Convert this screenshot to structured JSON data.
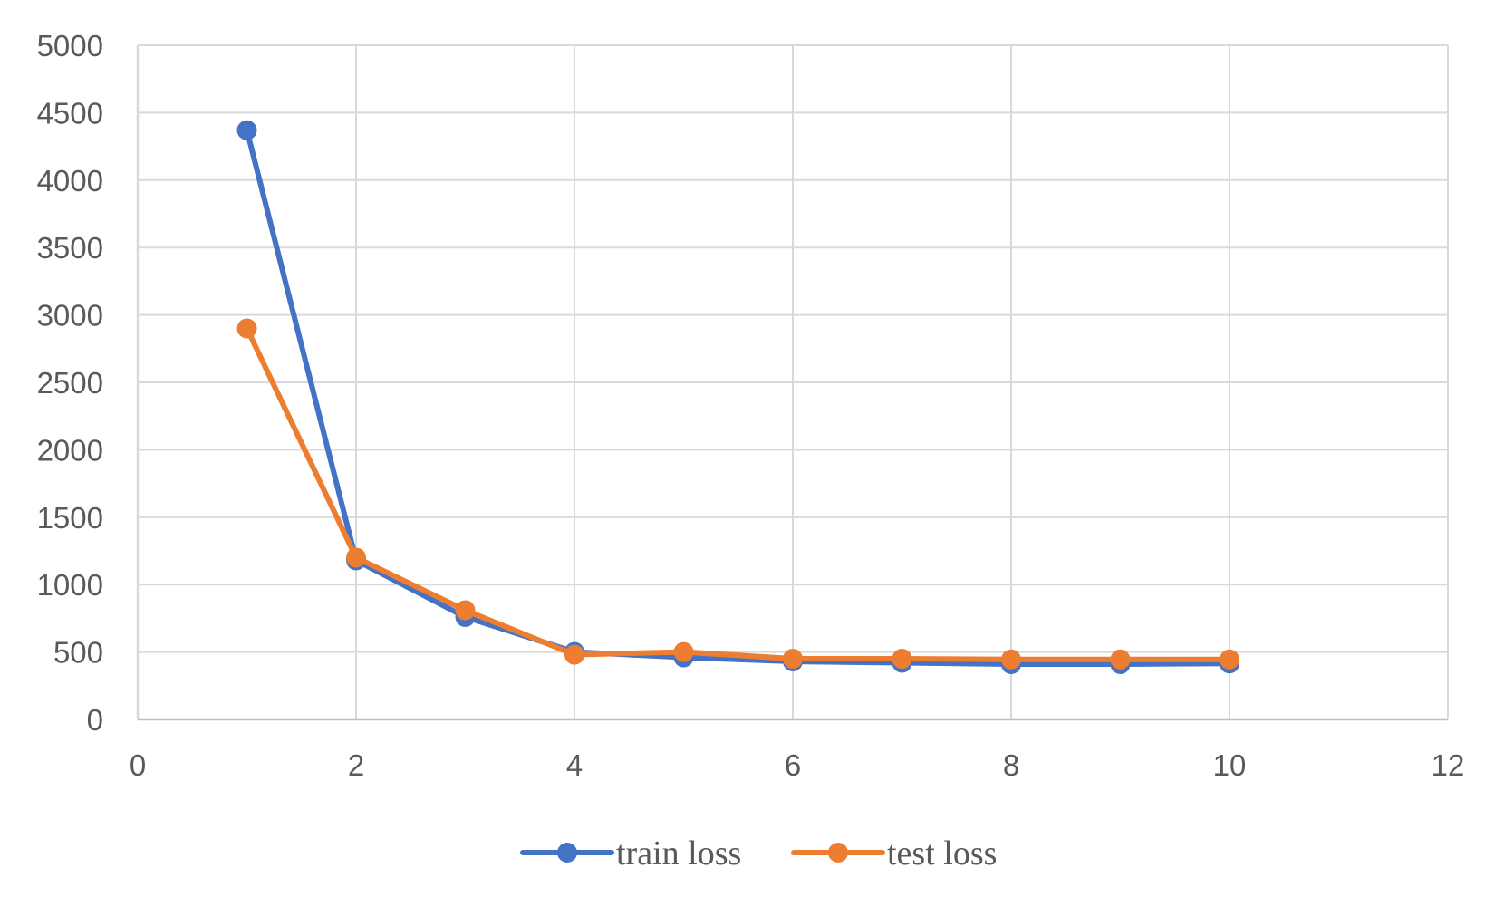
{
  "chart_data": {
    "type": "line",
    "title": "",
    "xlabel": "",
    "ylabel": "",
    "xlim": [
      0,
      12
    ],
    "ylim": [
      0,
      5000
    ],
    "x_ticks": [
      0,
      2,
      4,
      6,
      8,
      10,
      12
    ],
    "y_ticks": [
      0,
      500,
      1000,
      1500,
      2000,
      2500,
      3000,
      3500,
      4000,
      4500,
      5000
    ],
    "grid": true,
    "legend_position": "bottom",
    "x": [
      1,
      2,
      3,
      4,
      5,
      6,
      7,
      8,
      9,
      10
    ],
    "series": [
      {
        "name": "train loss",
        "color": "#4472C4",
        "values": [
          4370,
          1180,
          760,
          500,
          460,
          430,
          420,
          410,
          410,
          415
        ]
      },
      {
        "name": "test loss",
        "color": "#ED7D31",
        "values": [
          2900,
          1200,
          810,
          480,
          500,
          450,
          450,
          445,
          445,
          445
        ]
      }
    ]
  }
}
